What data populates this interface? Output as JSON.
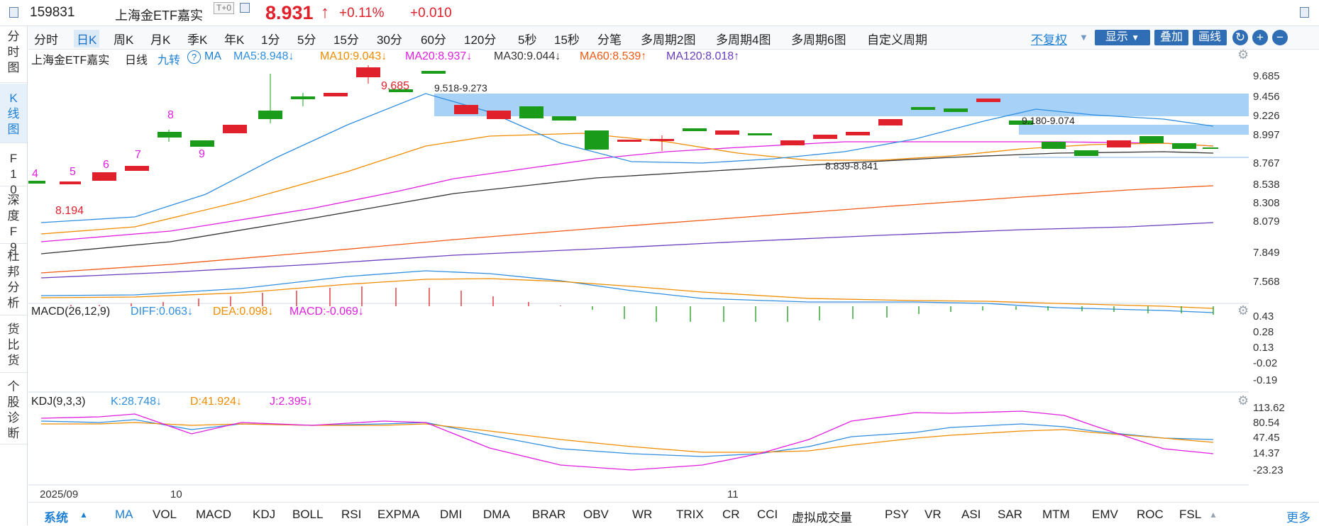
{
  "header": {
    "code": "159831",
    "name": "上海金ETF嘉实",
    "t0": "T+0",
    "price": "8.931",
    "change_pct": "+0.11%",
    "change": "+0.010"
  },
  "left_nav": [
    {
      "label": "分时图"
    },
    {
      "label": "K线图"
    },
    {
      "label": "F10"
    },
    {
      "label": "深度F9"
    },
    {
      "label": "杜邦分析"
    },
    {
      "label": "货比货"
    },
    {
      "label": "个股诊断"
    }
  ],
  "toolbar": {
    "periods": [
      "分时",
      "日K",
      "周K",
      "月K",
      "季K",
      "年K",
      "1分",
      "5分",
      "15分",
      "30分",
      "60分",
      "120分",
      "5秒",
      "15秒",
      "分笔",
      "多周期2图",
      "多周期4图",
      "多周期6图",
      "自定义周期"
    ],
    "fq": "不复权",
    "show": "显示",
    "overlay": "叠加",
    "draw": "画线"
  },
  "main_legend": {
    "title": "上海金ETF嘉实",
    "period": "日线",
    "jiuzhuan": "九转",
    "ma_label": "MA",
    "ma5": "MA5:8.948↓",
    "ma10": "MA10:9.043↓",
    "ma20": "MA20:8.937↓",
    "ma30": "MA30:9.044↓",
    "ma60": "MA60:8.539↑",
    "ma120": "MA120:8.018↑"
  },
  "main_axis": [
    "9.685",
    "9.456",
    "9.226",
    "8.997",
    "8.767",
    "8.538",
    "8.308",
    "8.079",
    "7.849",
    "7.568"
  ],
  "main_annotations": {
    "high": "9.685",
    "low": "8.194",
    "zone1": "9.518-9.273",
    "zone2": "9.180-9.074",
    "zone3": "8.839-8.841",
    "counts": [
      "4",
      "5",
      "6",
      "7",
      "8",
      "9"
    ]
  },
  "macd": {
    "label": "MACD(26,12,9)",
    "diff": "DIFF:0.063↓",
    "dea": "DEA:0.098↓",
    "macd": "MACD:-0.069↓",
    "axis": [
      "0.43",
      "0.28",
      "0.13",
      "-0.02",
      "-0.19"
    ]
  },
  "kdj": {
    "label": "KDJ(9,3,3)",
    "k": "K:28.748↓",
    "d": "D:41.924↓",
    "j": "J:2.395↓",
    "axis": [
      "113.62",
      "80.54",
      "47.45",
      "14.37",
      "-23.23"
    ]
  },
  "date_axis": [
    "2025/09",
    "10",
    "11"
  ],
  "bottom": {
    "system": "系统",
    "indicators": [
      "MA",
      "VOL",
      "MACD",
      "KDJ",
      "BOLL",
      "RSI",
      "EXPMA",
      "DMI",
      "DMA",
      "BRAR",
      "OBV",
      "WR",
      "TRIX",
      "CR",
      "CCI",
      "虚拟成交量",
      "PSY",
      "VR",
      "ASI",
      "SAR",
      "MTM",
      "EMV",
      "ROC",
      "FSL"
    ],
    "more": "更多"
  },
  "colors": {
    "up": "#e0202a",
    "down": "#1a9c1a",
    "ma5": "#2f8ee0",
    "ma10": "#f08c00",
    "ma20": "#e01ee0",
    "ma30": "#333333",
    "ma60": "#f05a14",
    "ma120": "#6a3dbf",
    "zone": "#9fccf7"
  }
}
